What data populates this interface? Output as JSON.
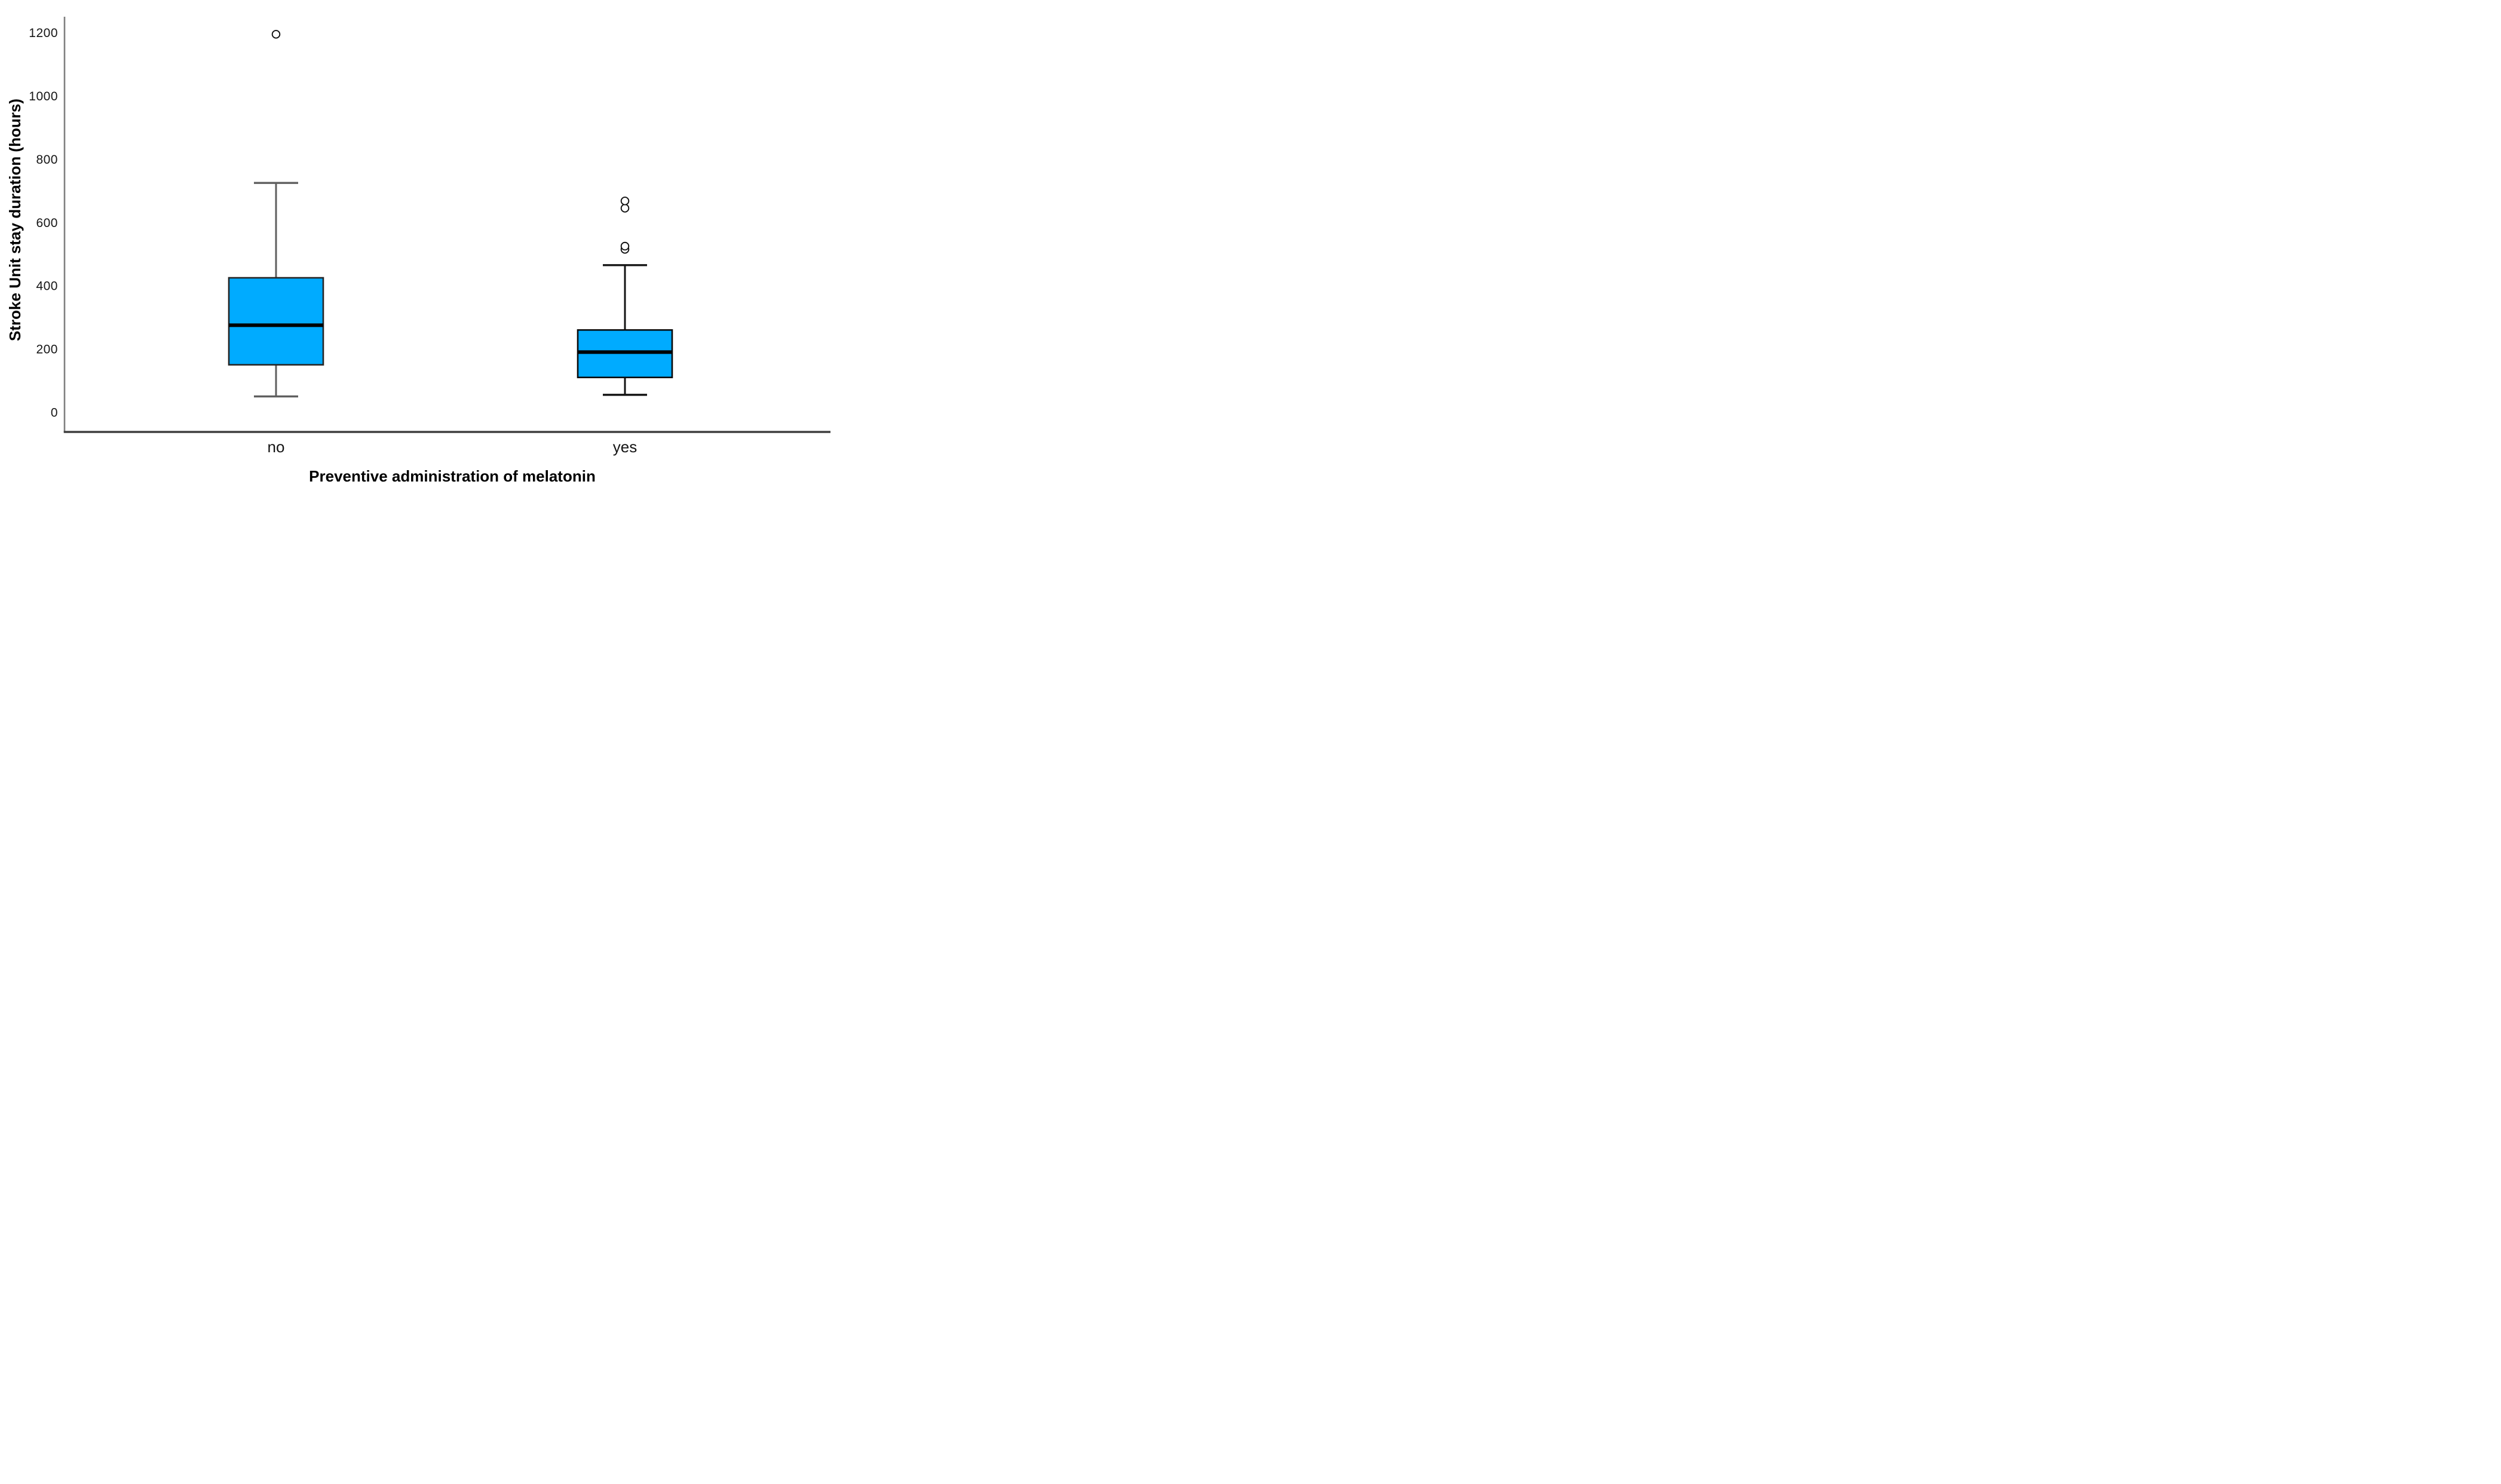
{
  "chart_data": {
    "type": "boxplot",
    "title": "",
    "ylabel": "Stroke Unit stay duration (hours)",
    "xlabel": "Preventive administration of melatonin",
    "ylim": [
      0,
      1200
    ],
    "yticks": [
      0,
      200,
      400,
      600,
      800,
      1000,
      1200
    ],
    "categories": [
      "no",
      "yes"
    ],
    "series": [
      {
        "category": "no",
        "whisker_low": 50,
        "q1": 150,
        "median": 275,
        "q3": 425,
        "whisker_high": 725,
        "outliers": [
          1195
        ],
        "line_color": "#5f5f5f",
        "edge_color": "#262626"
      },
      {
        "category": "yes",
        "whisker_low": 55,
        "q1": 110,
        "median": 190,
        "q3": 260,
        "whisker_high": 465,
        "outliers": [
          515,
          525,
          645,
          668
        ],
        "line_color": "#141414",
        "edge_color": "#0b0b0b"
      }
    ],
    "style": {
      "box_fill": "#00ABFF",
      "median_color": "#000000",
      "outlier_stroke": "#111111",
      "outlier_fill": "#ffffff",
      "y_axis_color": "#808080",
      "x_axis_color": "#3f3f3f",
      "text_color": "#141414",
      "background": "#ffffff",
      "grid": "off",
      "legend": "none"
    }
  }
}
